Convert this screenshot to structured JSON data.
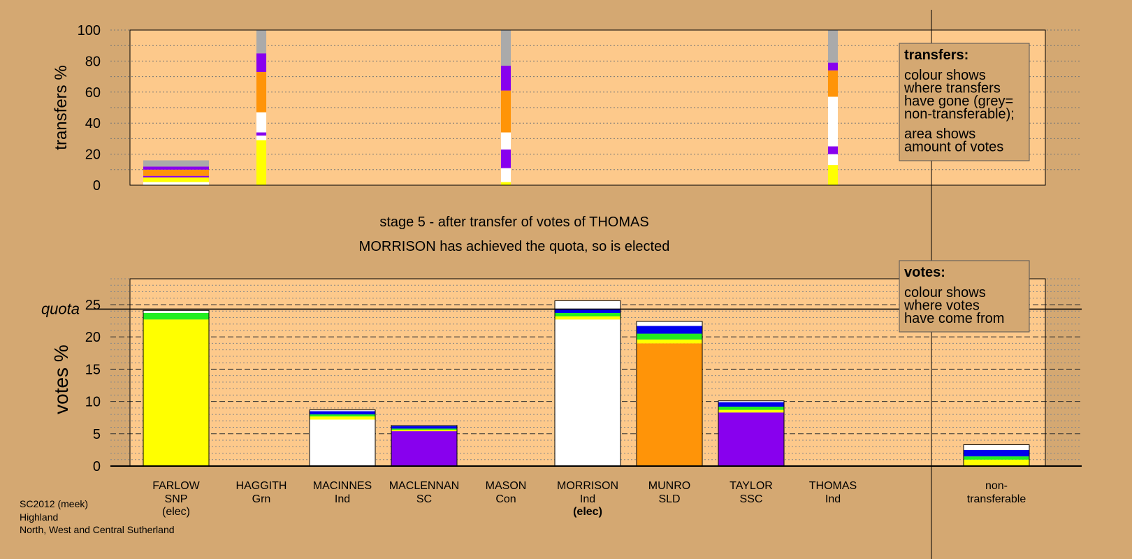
{
  "chart_data": {
    "type": "bar",
    "title": "stage 5 - after transfer of votes of THOMAS",
    "subtitle": "MORRISON has achieved the quota, so is elected",
    "quota_label": "quota",
    "quota": 24.3,
    "colors": {
      "SNP": "#ffff00",
      "Grn": "#22ee22",
      "Ind": "#ffffff",
      "SC": "#8800ee",
      "Con": "#0000ee",
      "SLD": "#ff9408",
      "SSC": "#8800ee",
      "nontransferable": "#aaaaaa",
      "plot_bg": "#fdc98b",
      "page_bg": "#d4a872"
    },
    "candidates": [
      {
        "name": "FARLOW",
        "party": "SNP",
        "note": "(elec)",
        "bold_note": false
      },
      {
        "name": "HAGGITH",
        "party": "Grn",
        "note": "",
        "bold_note": false
      },
      {
        "name": "MACINNES",
        "party": "Ind",
        "note": "",
        "bold_note": false
      },
      {
        "name": "MACLENNAN",
        "party": "SC",
        "note": "",
        "bold_note": false
      },
      {
        "name": "MASON",
        "party": "Con",
        "note": "",
        "bold_note": false
      },
      {
        "name": "MORRISON",
        "party": "Ind",
        "note": "(elec)",
        "bold_note": true
      },
      {
        "name": "MUNRO",
        "party": "SLD",
        "note": "",
        "bold_note": false
      },
      {
        "name": "TAYLOR",
        "party": "SSC",
        "note": "",
        "bold_note": false
      },
      {
        "name": "THOMAS",
        "party": "Ind",
        "note": "",
        "bold_note": false
      }
    ],
    "nontransferable_label": [
      "non-",
      "transferable"
    ],
    "votes_panel": {
      "ylabel": "votes %",
      "ylim": [
        0,
        29
      ],
      "ticks": [
        0,
        5,
        10,
        15,
        20,
        25
      ],
      "bars": [
        {
          "segments": [
            {
              "value": 22.7,
              "color": "#ffff00"
            },
            {
              "value": 1.0,
              "color": "#22ee22"
            },
            {
              "value": 0.4,
              "color": "#ffffff"
            }
          ]
        },
        {
          "segments": []
        },
        {
          "segments": [
            {
              "value": 7.2,
              "color": "#ffffff"
            },
            {
              "value": 0.5,
              "color": "#ffff00"
            },
            {
              "value": 0.3,
              "color": "#22ee22"
            },
            {
              "value": 0.5,
              "color": "#0000ee"
            },
            {
              "value": 0.2,
              "color": "#ffffff"
            }
          ]
        },
        {
          "segments": [
            {
              "value": 5.4,
              "color": "#8800ee"
            },
            {
              "value": 0.2,
              "color": "#ffff00"
            },
            {
              "value": 0.2,
              "color": "#22ee22"
            },
            {
              "value": 0.4,
              "color": "#0000ee"
            },
            {
              "value": 0.1,
              "color": "#ffffff"
            }
          ]
        },
        {
          "segments": []
        },
        {
          "segments": [
            {
              "value": 22.7,
              "color": "#ffffff"
            },
            {
              "value": 0.5,
              "color": "#ffff00"
            },
            {
              "value": 0.5,
              "color": "#22ee22"
            },
            {
              "value": 0.6,
              "color": "#0000ee"
            },
            {
              "value": 1.3,
              "color": "#ffffff"
            }
          ]
        },
        {
          "segments": [
            {
              "value": 19.0,
              "color": "#ff9408"
            },
            {
              "value": 0.6,
              "color": "#ffff00"
            },
            {
              "value": 0.9,
              "color": "#22ee22"
            },
            {
              "value": 1.2,
              "color": "#0000ee"
            },
            {
              "value": 0.7,
              "color": "#ffffff"
            }
          ]
        },
        {
          "segments": [
            {
              "value": 8.3,
              "color": "#8800ee"
            },
            {
              "value": 0.4,
              "color": "#ffff00"
            },
            {
              "value": 0.5,
              "color": "#22ee22"
            },
            {
              "value": 0.7,
              "color": "#0000ee"
            },
            {
              "value": 0.2,
              "color": "#ffffff"
            }
          ]
        },
        {
          "segments": []
        }
      ],
      "nontransferable": {
        "segments": [
          {
            "value": 1.0,
            "color": "#ffff00"
          },
          {
            "value": 0.5,
            "color": "#22ee22"
          },
          {
            "value": 1.0,
            "color": "#0000ee"
          },
          {
            "value": 0.8,
            "color": "#ffffff"
          }
        ]
      }
    },
    "transfers_panel": {
      "ylabel": "transfers %",
      "ylim": [
        0,
        100
      ],
      "ticks": [
        0,
        20,
        40,
        60,
        80,
        100
      ],
      "columns": [
        {
          "candidate": 0,
          "width_pct": 100,
          "segments": [
            {
              "value": 2,
              "color": "#ffffff"
            },
            {
              "value": 3,
              "color": "#ffff00"
            },
            {
              "value": 1,
              "color": "#8800ee"
            },
            {
              "value": 4,
              "color": "#ff9408"
            },
            {
              "value": 2,
              "color": "#8800ee"
            },
            {
              "value": 4,
              "color": "#aaaaaa"
            }
          ]
        },
        {
          "candidate": 1,
          "width_pct": 15,
          "segments": [
            {
              "value": 29,
              "color": "#ffff00"
            },
            {
              "value": 3,
              "color": "#ffffff"
            },
            {
              "value": 2,
              "color": "#8800ee"
            },
            {
              "value": 13,
              "color": "#ffffff"
            },
            {
              "value": 26,
              "color": "#ff9408"
            },
            {
              "value": 12,
              "color": "#8800ee"
            },
            {
              "value": 15,
              "color": "#aaaaaa"
            }
          ]
        },
        {
          "candidate": 4,
          "width_pct": 15,
          "segments": [
            {
              "value": 2,
              "color": "#ffff00"
            },
            {
              "value": 9,
              "color": "#ffffff"
            },
            {
              "value": 12,
              "color": "#8800ee"
            },
            {
              "value": 11,
              "color": "#ffffff"
            },
            {
              "value": 27,
              "color": "#ff9408"
            },
            {
              "value": 16,
              "color": "#8800ee"
            },
            {
              "value": 23,
              "color": "#aaaaaa"
            }
          ]
        },
        {
          "candidate": 8,
          "width_pct": 15,
          "segments": [
            {
              "value": 13,
              "color": "#ffff00"
            },
            {
              "value": 7,
              "color": "#ffffff"
            },
            {
              "value": 5,
              "color": "#8800ee"
            },
            {
              "value": 32,
              "color": "#ffffff"
            },
            {
              "value": 17,
              "color": "#ff9408"
            },
            {
              "value": 5,
              "color": "#8800ee"
            },
            {
              "value": 21,
              "color": "#aaaaaa"
            }
          ]
        }
      ]
    },
    "legend_transfers": {
      "title": "transfers:",
      "lines1": [
        "colour shows",
        "where transfers",
        "have gone (grey=",
        "non-transferable);"
      ],
      "lines2": [
        "area shows",
        "amount of votes"
      ]
    },
    "legend_votes": {
      "title": "votes:",
      "lines": [
        "colour shows",
        "where votes",
        "have come from"
      ]
    }
  },
  "footer": {
    "line1": "SC2012 (meek)",
    "line2": "Highland",
    "line3": "North, West and Central Sutherland"
  }
}
